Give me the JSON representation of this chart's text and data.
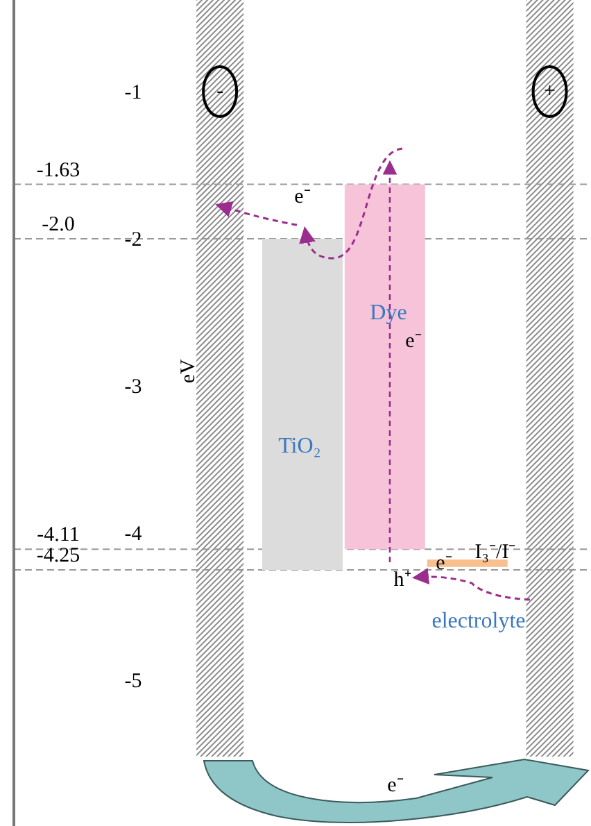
{
  "chart_data": {
    "type": "bar",
    "ylabel": "eV",
    "categories": [
      null,
      null,
      null,
      null,
      null,
      null,
      null
    ],
    "values": [
      null,
      null,
      null,
      2.25,
      2.48,
      0.05,
      null
    ],
    "base": [
      null,
      null,
      null,
      -4.25,
      -4.11,
      -4.23,
      null
    ],
    "colors": [
      null,
      null,
      null,
      "#dcdcdc",
      "#f7c3d8",
      "#f9c08f",
      null
    ],
    "ylim": [
      -5,
      -1
    ],
    "yticks": [
      -1,
      -2,
      -3,
      -4,
      -5
    ],
    "ref_lines": [
      {
        "axis": "y",
        "value": -1.63,
        "label": "-1.63",
        "color": "#999999",
        "line_style": "dashed"
      },
      {
        "axis": "y",
        "value": -2.0,
        "label": "-2.0",
        "color": "#999999",
        "line_style": "dashed"
      },
      {
        "axis": "y",
        "value": -4.11,
        "label": "-4.11",
        "color": "#999999",
        "line_style": "dashed"
      },
      {
        "axis": "y",
        "value": -4.25,
        "label": "-4.25",
        "color": "#999999",
        "line_style": "dashed"
      }
    ],
    "annotations": [
      "-",
      "+",
      "e⁻",
      "e⁻",
      "e⁻",
      "h⁺",
      "I₃⁻/I⁻",
      "e⁻",
      "TiO₂",
      "Dye",
      "electrolyte"
    ]
  }
}
